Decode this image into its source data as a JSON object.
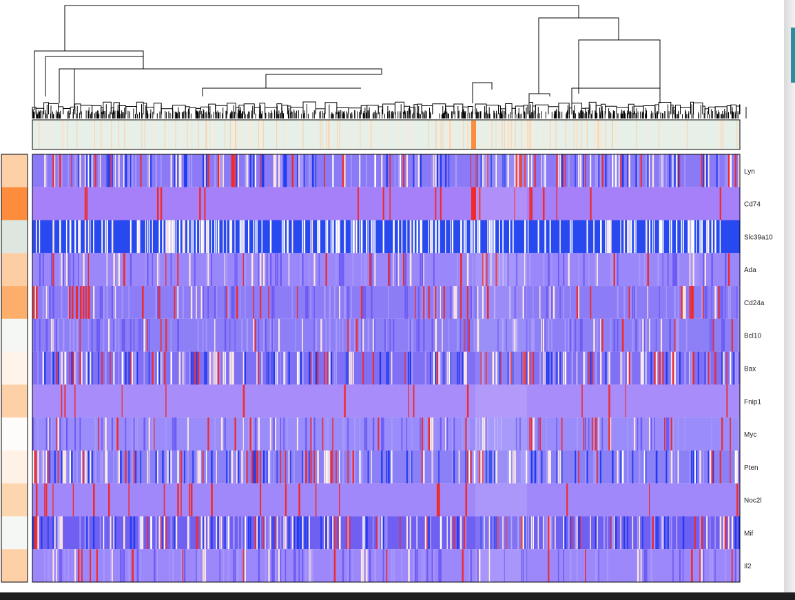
{
  "chart_data": {
    "type": "heatmap",
    "title": "",
    "genes": [
      {
        "name": "Lyn",
        "side_color": "#fdd0a8",
        "base": "#8a7af5",
        "variation": "high"
      },
      {
        "name": "Cd74",
        "side_color": "#fd8d3c",
        "base": "#a680f8",
        "variation": "low"
      },
      {
        "name": "Slc39a10",
        "side_color": "#dde7df",
        "base": "#2848f0",
        "variation": "binary"
      },
      {
        "name": "Ada",
        "side_color": "#fdcda4",
        "base": "#9a88fa",
        "variation": "mid"
      },
      {
        "name": "Cd24a",
        "side_color": "#fdae6b",
        "base": "#8c7cf6",
        "variation": "mid"
      },
      {
        "name": "Bcl10",
        "side_color": "#f4f7f4",
        "base": "#8d80f7",
        "variation": "mid"
      },
      {
        "name": "Bax",
        "side_color": "#fff3ea",
        "base": "#8070f4",
        "variation": "high"
      },
      {
        "name": "Fnip1",
        "side_color": "#fdd0a8",
        "base": "#a88cfa",
        "variation": "low"
      },
      {
        "name": "Myc",
        "side_color": "#fefcfa",
        "base": "#9a8cfa",
        "variation": "mid"
      },
      {
        "name": "Pten",
        "side_color": "#fff1e6",
        "base": "#8c80f6",
        "variation": "high"
      },
      {
        "name": "Noc2l",
        "side_color": "#fdd6b0",
        "base": "#a088fa",
        "variation": "low"
      },
      {
        "name": "Mif",
        "side_color": "#f4f7f4",
        "base": "#7060f2",
        "variation": "high"
      },
      {
        "name": "Il2",
        "side_color": "#fdd0a8",
        "base": "#9c88fa",
        "variation": "mid"
      }
    ],
    "n_cells": 1030,
    "column_annotation": {
      "base": "#e6efe8",
      "accent": "#fd8d3c"
    },
    "color_scale": {
      "low": "#1f3cf0",
      "mid": "#a07ff8",
      "high": "#f02a2a",
      "pale": "#fde6df"
    },
    "dendrogram": "column clustering tree shown above heatmap",
    "legend": "none"
  }
}
